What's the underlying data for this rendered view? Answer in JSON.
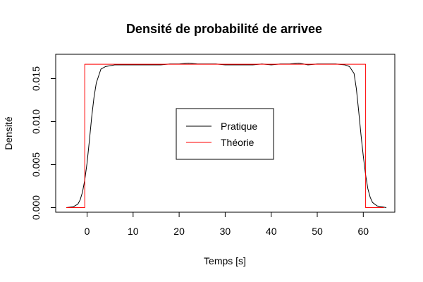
{
  "chart_data": {
    "type": "line",
    "title": "Densité de probabilité de arrivee",
    "xlabel": "Temps [s]",
    "ylabel": "Densité",
    "xlim": [
      -5,
      65
    ],
    "ylim": [
      0,
      0.017
    ],
    "x_ticks": [
      0,
      10,
      20,
      30,
      40,
      50,
      60
    ],
    "x_tick_labels": [
      "0",
      "10",
      "20",
      "30",
      "40",
      "50",
      "60"
    ],
    "y_ticks": [
      0.0,
      0.005,
      0.01,
      0.015
    ],
    "y_tick_labels": [
      "0.000",
      "0.005",
      "0.010",
      "0.015"
    ],
    "grid": false,
    "legend_position": "center",
    "series": [
      {
        "name": "Pratique",
        "color": "#000000",
        "x": [
          -4.5,
          -3,
          -2,
          -1.5,
          -1,
          -0.5,
          0,
          0.5,
          1,
          1.5,
          2,
          3,
          4,
          5,
          6,
          7,
          8,
          10,
          12,
          14,
          16,
          18,
          20,
          22,
          24,
          26,
          28,
          30,
          32,
          34,
          36,
          38,
          40,
          42,
          44,
          46,
          48,
          50,
          52,
          54,
          56,
          57,
          58,
          58.5,
          59,
          59.5,
          60,
          60.5,
          61,
          61.5,
          62,
          63,
          64,
          65
        ],
        "y": [
          0.0,
          0.0001,
          0.0004,
          0.0009,
          0.0018,
          0.0032,
          0.0052,
          0.0078,
          0.0105,
          0.0128,
          0.0145,
          0.0161,
          0.0164,
          0.0165,
          0.0166,
          0.0166,
          0.0166,
          0.0166,
          0.0166,
          0.0166,
          0.0166,
          0.0167,
          0.0167,
          0.0168,
          0.0167,
          0.0167,
          0.0167,
          0.0166,
          0.0166,
          0.0166,
          0.0166,
          0.0167,
          0.0166,
          0.0167,
          0.0167,
          0.0168,
          0.0166,
          0.0167,
          0.0167,
          0.0167,
          0.0166,
          0.0164,
          0.0156,
          0.0138,
          0.0112,
          0.0085,
          0.006,
          0.0038,
          0.0022,
          0.0012,
          0.0006,
          0.0002,
          0.0001,
          0.0
        ]
      },
      {
        "name": "Théorie",
        "color": "#ff0000",
        "x": [
          -4.5,
          -0.5,
          -0.5,
          60.5,
          60.5,
          64.5
        ],
        "y": [
          0.0,
          0.0,
          0.01667,
          0.01667,
          0.0,
          0.0
        ]
      }
    ]
  }
}
